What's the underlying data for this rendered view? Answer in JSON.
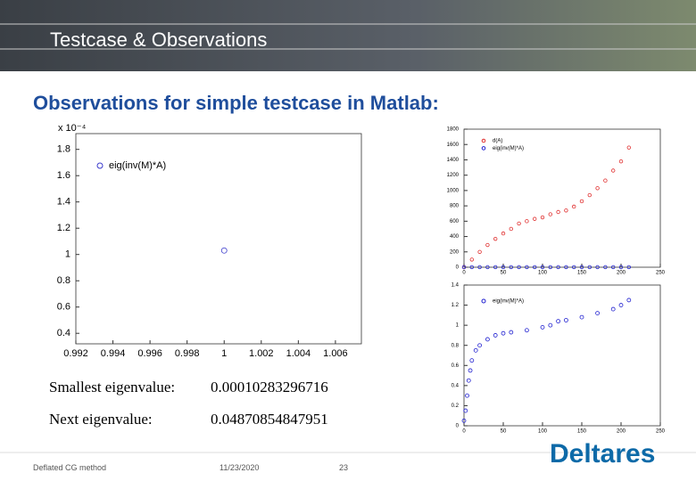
{
  "header": {
    "title": "Testcase & Observations",
    "subtitle": "Observations for simple testcase in Matlab:"
  },
  "results": [
    {
      "label": "Smallest eigenvalue:",
      "value": "0.00010283296716"
    },
    {
      "label": "Next eigenvalue:",
      "value": "0.04870854847951"
    }
  ],
  "footer": {
    "left": "Deflated CG method",
    "date": "11/23/2020",
    "page": "23",
    "logo": "Deltares"
  },
  "chart_data": [
    {
      "type": "scatter",
      "y_exponent_label": "x 10⁻⁴",
      "series": [
        {
          "name": "eig(inv(M)*A)",
          "color": "#3a3acc",
          "x": [
            1
          ],
          "values": [
            1.03
          ]
        }
      ],
      "xlim": [
        0.992,
        1.0074
      ],
      "ylim": [
        0.32,
        1.92
      ],
      "xticks": [
        0.992,
        0.994,
        0.996,
        0.998,
        1,
        1.002,
        1.004,
        1.006
      ],
      "yticks": [
        0.4,
        0.6,
        0.8,
        1,
        1.2,
        1.4,
        1.6,
        1.8
      ]
    },
    {
      "type": "scatter",
      "series": [
        {
          "name": "d(A)",
          "color": "#e03030",
          "x": [
            0,
            10,
            20,
            30,
            40,
            50,
            60,
            70,
            80,
            90,
            100,
            110,
            120,
            130,
            140,
            150,
            160,
            170,
            180,
            190,
            200,
            210
          ],
          "values": [
            0,
            100,
            200,
            290,
            370,
            440,
            500,
            570,
            600,
            630,
            650,
            690,
            720,
            740,
            790,
            860,
            940,
            1030,
            1130,
            1260,
            1380,
            1560
          ]
        },
        {
          "name": "eig(inv(M)*A)",
          "color": "#2020d0",
          "x": [
            0,
            10,
            20,
            30,
            40,
            50,
            60,
            70,
            80,
            90,
            100,
            110,
            120,
            130,
            140,
            150,
            160,
            170,
            180,
            190,
            200,
            210
          ],
          "values": [
            1,
            1,
            1,
            1,
            1,
            1,
            1,
            1,
            1,
            1,
            1,
            1,
            1,
            1,
            1,
            1,
            1,
            1,
            1,
            1,
            1,
            1
          ]
        }
      ],
      "xlim": [
        0,
        250
      ],
      "ylim": [
        0,
        1800
      ],
      "xticks": [
        0,
        50,
        100,
        150,
        200,
        250
      ],
      "yticks": [
        0,
        200,
        400,
        600,
        800,
        1000,
        1200,
        1400,
        1600,
        1800
      ]
    },
    {
      "type": "scatter",
      "series": [
        {
          "name": "eig(inv(M)*A)",
          "color": "#2020d0",
          "x": [
            0,
            2,
            4,
            6,
            8,
            10,
            15,
            20,
            30,
            40,
            50,
            60,
            80,
            100,
            110,
            120,
            130,
            150,
            170,
            190,
            200,
            210
          ],
          "values": [
            0.05,
            0.15,
            0.3,
            0.45,
            0.55,
            0.65,
            0.75,
            0.8,
            0.86,
            0.9,
            0.92,
            0.93,
            0.95,
            0.98,
            1.0,
            1.04,
            1.05,
            1.08,
            1.12,
            1.16,
            1.2,
            1.25
          ]
        }
      ],
      "xlim": [
        0,
        250
      ],
      "ylim": [
        0,
        1.4
      ],
      "xticks": [
        0,
        50,
        100,
        150,
        200,
        250
      ],
      "yticks": [
        0,
        0.2,
        0.4,
        0.6,
        0.8,
        1,
        1.2,
        1.4
      ]
    }
  ]
}
